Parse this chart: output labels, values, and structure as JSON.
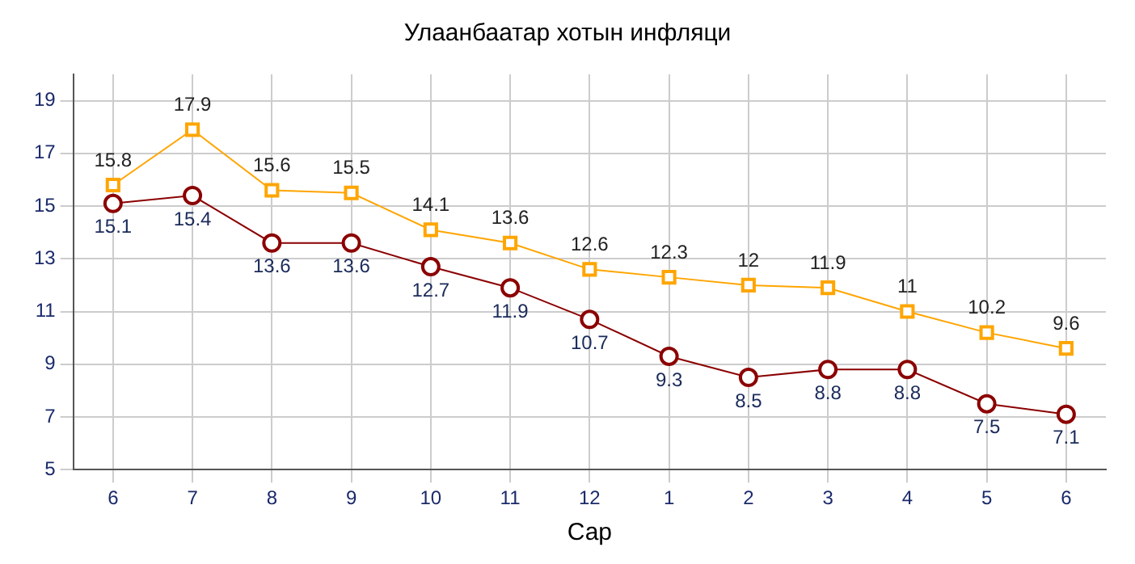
{
  "chart_data": {
    "type": "line",
    "title": "Улаанбаатар хотын инфляци",
    "xlabel": "Сар",
    "categories": [
      "6",
      "7",
      "8",
      "9",
      "10",
      "11",
      "12",
      "1",
      "2",
      "3",
      "4",
      "5",
      "6"
    ],
    "series": [
      {
        "color": "#ffa500",
        "marker": "square",
        "values": [
          15.8,
          17.9,
          15.6,
          15.5,
          14.1,
          13.6,
          12.6,
          12.3,
          12,
          11.9,
          11,
          10.2,
          9.6
        ]
      },
      {
        "color": "#8b0000",
        "marker": "circle",
        "values": [
          15.1,
          15.4,
          13.6,
          13.6,
          12.7,
          11.9,
          10.7,
          9.3,
          8.5,
          8.8,
          8.8,
          7.5,
          7.1
        ]
      }
    ],
    "ylim": [
      5,
      20
    ],
    "yticks": [
      5,
      7,
      9,
      11,
      13,
      15,
      17,
      19
    ],
    "grid": true,
    "legend": false,
    "data_labels": true,
    "line_style": "solid"
  }
}
